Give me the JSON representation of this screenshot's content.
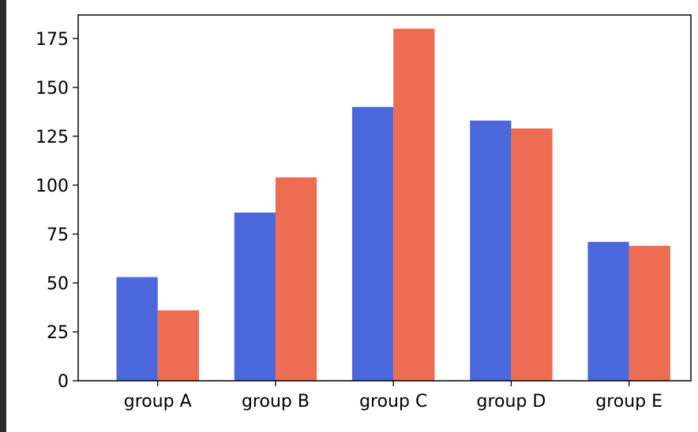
{
  "chart_data": {
    "type": "bar",
    "title": "",
    "xlabel": "",
    "ylabel": "",
    "categories": [
      "group A",
      "group B",
      "group C",
      "group D",
      "group E"
    ],
    "series": [
      {
        "values": [
          53,
          86,
          140,
          133,
          71
        ],
        "color": "#4a68dc"
      },
      {
        "values": [
          36,
          104,
          180,
          129,
          69
        ],
        "color": "#ec6d51"
      }
    ],
    "ylim": [
      0,
      187
    ],
    "yticks": [
      0,
      25,
      50,
      75,
      100,
      125,
      150,
      175
    ],
    "ytick_labels": [
      "0",
      "25",
      "50",
      "75",
      "100",
      "125",
      "150",
      "175"
    ],
    "grid": false,
    "legend": "none"
  },
  "page": {
    "background": "#ffffff",
    "border_color": "#2b2b2b"
  }
}
